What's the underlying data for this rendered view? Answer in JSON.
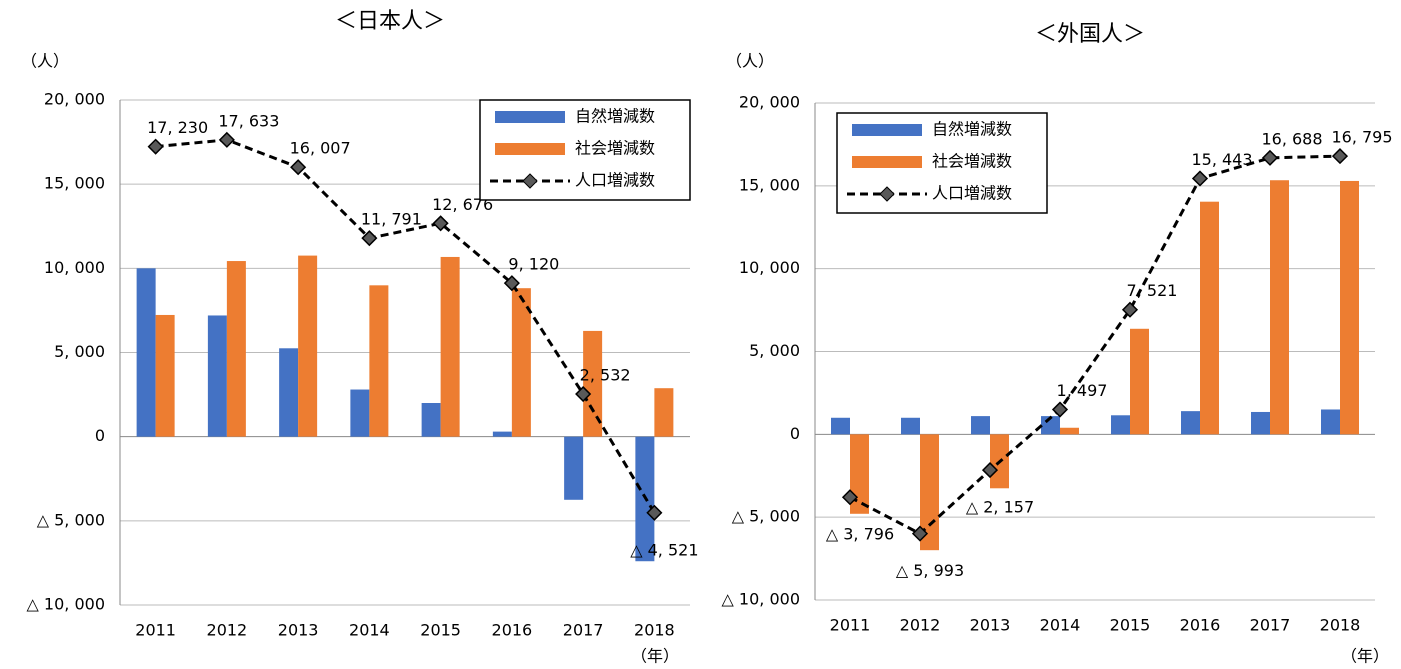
{
  "chart_data": [
    {
      "type": "bar",
      "title": "＜日本人＞",
      "y_label": "（人）",
      "x_label": "（年）",
      "categories": [
        "2011",
        "2012",
        "2013",
        "2014",
        "2015",
        "2016",
        "2017",
        "2018"
      ],
      "series": [
        {
          "name": "自然増減数",
          "type": "bar",
          "color": "#4472c4",
          "values": [
            10000,
            7200,
            5250,
            2800,
            2000,
            300,
            -3750,
            -7400
          ]
        },
        {
          "name": "社会増減数",
          "type": "bar",
          "color": "#ed7d31",
          "values": [
            7230,
            10433,
            10757,
            8991,
            10676,
            8820,
            6282,
            2879
          ]
        },
        {
          "name": "人口増減数",
          "type": "line",
          "color": "#000000",
          "values": [
            17230,
            17633,
            16007,
            11791,
            12676,
            9120,
            2532,
            -4521
          ],
          "value_labels": [
            "17, 230",
            "17, 633",
            "16, 007",
            "11, 791",
            "12, 676",
            "9, 120",
            "2, 532",
            "△ 4, 521"
          ]
        }
      ],
      "ylim": [
        -10000,
        20000
      ],
      "yticks": [
        {
          "value": -10000,
          "label": "△ 10, 000"
        },
        {
          "value": -5000,
          "label": "△ 5, 000"
        },
        0,
        {
          "value": 5000,
          "label": "5, 000"
        },
        {
          "value": 10000,
          "label": "10, 000"
        },
        {
          "value": 15000,
          "label": "15, 000"
        },
        {
          "value": 20000,
          "label": "20, 000"
        }
      ],
      "grid": true,
      "legend": "upper right"
    },
    {
      "type": "bar",
      "title": "＜外国人＞",
      "y_label": "（人）",
      "x_label": "（年）",
      "categories": [
        "2011",
        "2012",
        "2013",
        "2014",
        "2015",
        "2016",
        "2017",
        "2018"
      ],
      "series": [
        {
          "name": "自然増減数",
          "type": "bar",
          "color": "#4472c4",
          "values": [
            1000,
            1000,
            1100,
            1100,
            1150,
            1400,
            1350,
            1500
          ]
        },
        {
          "name": "社会増減数",
          "type": "bar",
          "color": "#ed7d31",
          "values": [
            -4796,
            -6993,
            -3257,
            397,
            6371,
            14043,
            15338,
            15295
          ]
        },
        {
          "name": "人口増減数",
          "type": "line",
          "color": "#000000",
          "values": [
            -3796,
            -5993,
            -2157,
            1497,
            7521,
            15443,
            16688,
            16795
          ],
          "value_labels": [
            "△ 3, 796",
            "△ 5, 993",
            "△ 2, 157",
            "1, 497",
            "7, 521",
            "15, 443",
            "16, 688",
            "16, 795"
          ]
        }
      ],
      "ylim": [
        -10000,
        20000
      ],
      "yticks": [
        {
          "value": -10000,
          "label": "△ 10, 000"
        },
        {
          "value": -5000,
          "label": "△ 5, 000"
        },
        0,
        {
          "value": 5000,
          "label": "5, 000"
        },
        {
          "value": 10000,
          "label": "10, 000"
        },
        {
          "value": 15000,
          "label": "15, 000"
        },
        {
          "value": 20000,
          "label": "20, 000"
        }
      ],
      "grid": true,
      "legend": "upper left"
    }
  ]
}
